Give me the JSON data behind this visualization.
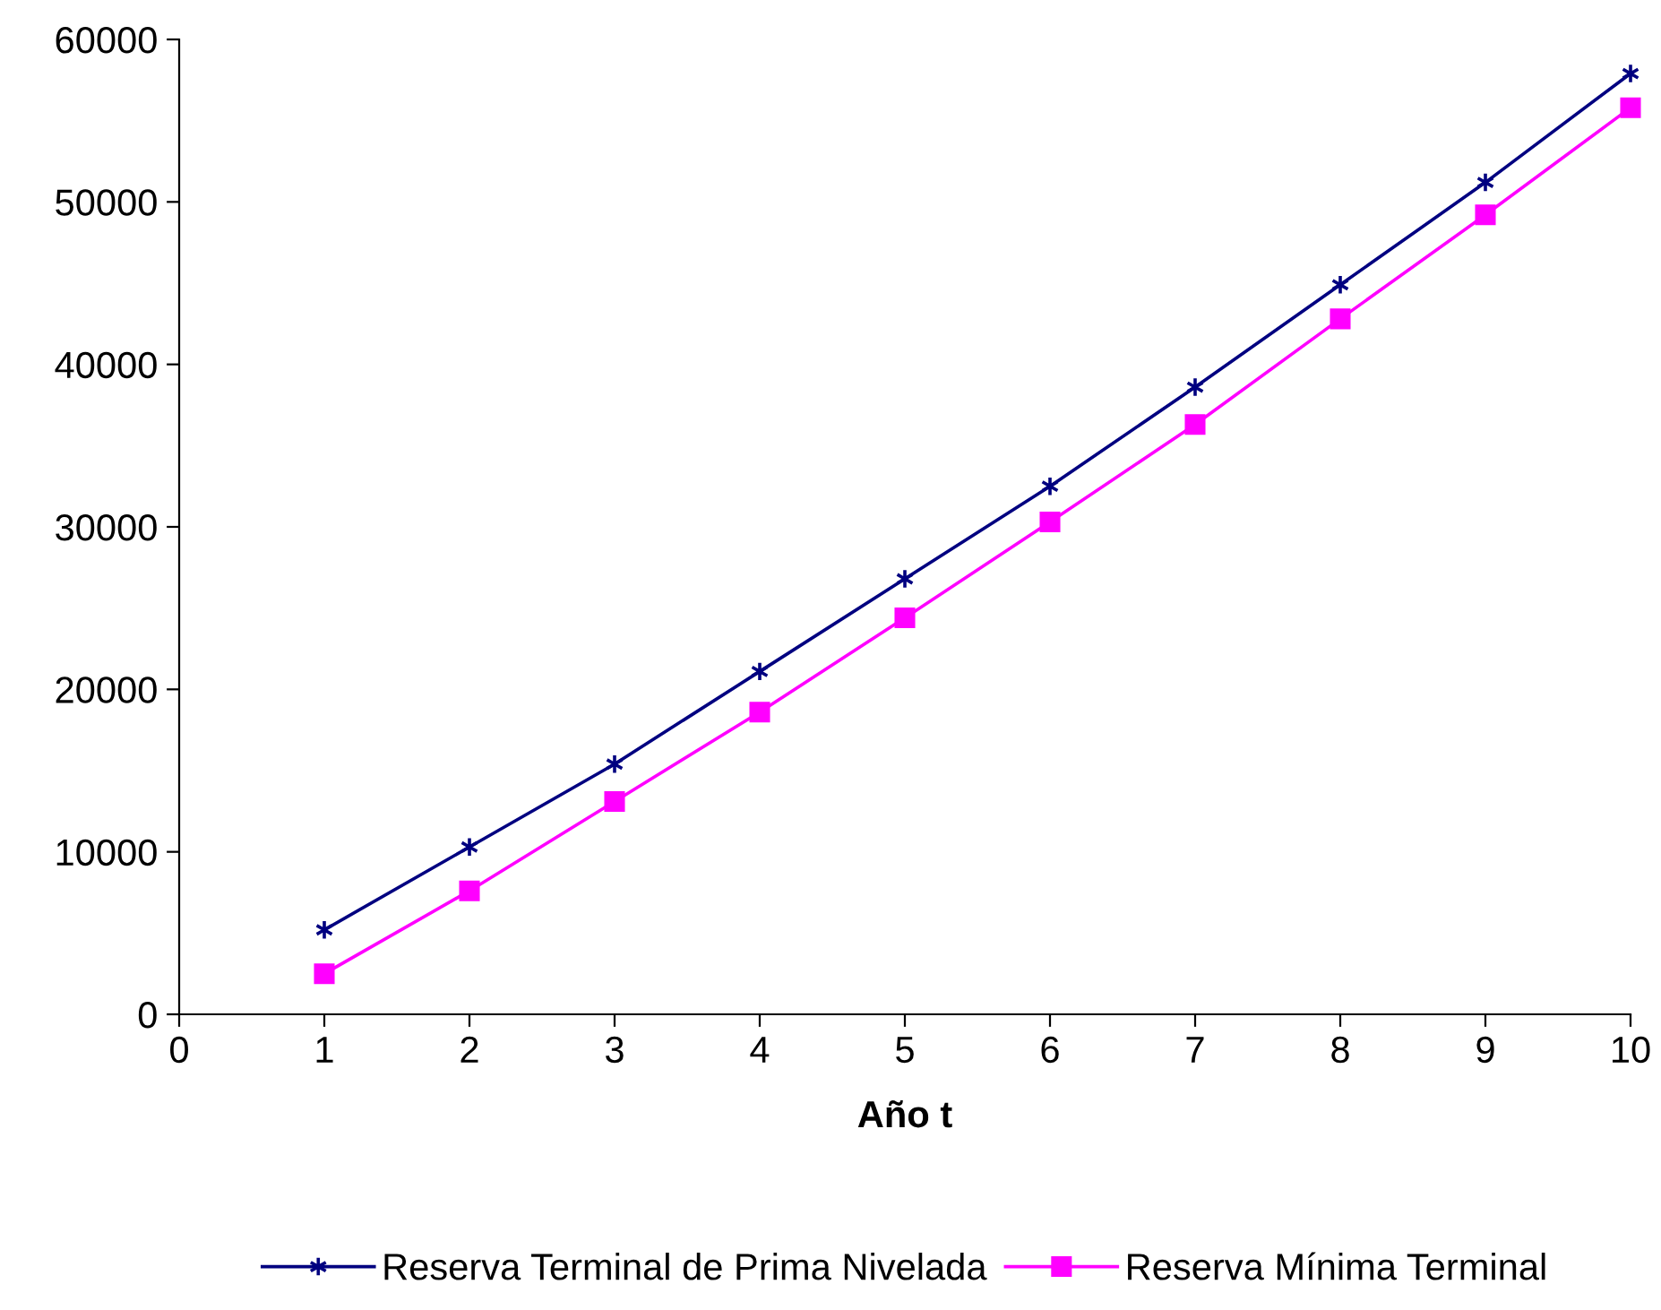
{
  "chart_data": {
    "type": "line",
    "xlabel": "Año t",
    "x": [
      1,
      2,
      3,
      4,
      5,
      6,
      7,
      8,
      9,
      10
    ],
    "series": [
      {
        "name": "Reserva Terminal de Prima Nivelada",
        "color": "#000080",
        "marker": "cross",
        "values": [
          5200,
          10300,
          15400,
          21100,
          26800,
          32500,
          38600,
          44900,
          51200,
          57900
        ]
      },
      {
        "name": "Reserva Mínima Terminal",
        "color": "#ff00ff",
        "marker": "square",
        "values": [
          2500,
          7600,
          13100,
          18600,
          24400,
          30300,
          36300,
          42800,
          49200,
          55800
        ]
      }
    ],
    "xlim": [
      0,
      10
    ],
    "xticks": [
      0,
      1,
      2,
      3,
      4,
      5,
      6,
      7,
      8,
      9,
      10
    ],
    "ylim": [
      0,
      60000
    ],
    "yticks": [
      0,
      10000,
      20000,
      30000,
      40000,
      50000,
      60000
    ],
    "grid": false,
    "legend": "bottom",
    "line_style": "solid"
  }
}
